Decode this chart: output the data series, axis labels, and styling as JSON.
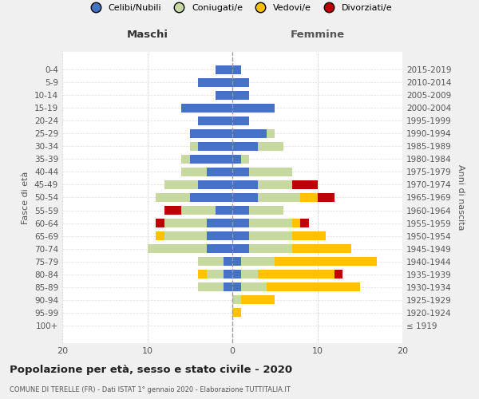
{
  "age_groups": [
    "0-4",
    "5-9",
    "10-14",
    "15-19",
    "20-24",
    "25-29",
    "30-34",
    "35-39",
    "40-44",
    "45-49",
    "50-54",
    "55-59",
    "60-64",
    "65-69",
    "70-74",
    "75-79",
    "80-84",
    "85-89",
    "90-94",
    "95-99",
    "100+"
  ],
  "birth_years": [
    "2015-2019",
    "2010-2014",
    "2005-2009",
    "2000-2004",
    "1995-1999",
    "1990-1994",
    "1985-1989",
    "1980-1984",
    "1975-1979",
    "1970-1974",
    "1965-1969",
    "1960-1964",
    "1955-1959",
    "1950-1954",
    "1945-1949",
    "1940-1944",
    "1935-1939",
    "1930-1934",
    "1925-1929",
    "1920-1924",
    "≤ 1919"
  ],
  "colors": {
    "celibe": "#4472c4",
    "coniugato": "#c5d9a0",
    "vedovo": "#ffc000",
    "divorziato": "#c00000"
  },
  "males": {
    "celibe": [
      2,
      4,
      2,
      6,
      4,
      5,
      4,
      5,
      3,
      4,
      5,
      2,
      3,
      3,
      3,
      1,
      1,
      1,
      0,
      0,
      0
    ],
    "coniugato": [
      0,
      0,
      0,
      0,
      0,
      0,
      1,
      1,
      3,
      4,
      4,
      4,
      5,
      5,
      7,
      3,
      2,
      3,
      0,
      0,
      0
    ],
    "vedovo": [
      0,
      0,
      0,
      0,
      0,
      0,
      0,
      0,
      0,
      0,
      0,
      0,
      0,
      1,
      0,
      0,
      1,
      0,
      0,
      0,
      0
    ],
    "divorziato": [
      0,
      0,
      0,
      0,
      0,
      0,
      0,
      0,
      0,
      0,
      0,
      2,
      1,
      0,
      0,
      0,
      0,
      0,
      0,
      0,
      0
    ]
  },
  "females": {
    "nubile": [
      1,
      2,
      2,
      5,
      2,
      4,
      3,
      1,
      2,
      3,
      3,
      2,
      2,
      2,
      2,
      1,
      1,
      1,
      0,
      0,
      0
    ],
    "coniugata": [
      0,
      0,
      0,
      0,
      0,
      1,
      3,
      1,
      5,
      4,
      5,
      4,
      5,
      5,
      5,
      4,
      2,
      3,
      1,
      0,
      0
    ],
    "vedova": [
      0,
      0,
      0,
      0,
      0,
      0,
      0,
      0,
      0,
      0,
      2,
      0,
      1,
      4,
      7,
      12,
      9,
      11,
      4,
      1,
      0
    ],
    "divorziata": [
      0,
      0,
      0,
      0,
      0,
      0,
      0,
      0,
      0,
      3,
      2,
      0,
      1,
      0,
      0,
      0,
      1,
      0,
      0,
      0,
      0
    ]
  },
  "title": "Popolazione per età, sesso e stato civile - 2020",
  "subtitle": "COMUNE DI TERELLE (FR) - Dati ISTAT 1° gennaio 2020 - Elaborazione TUTTITALIA.IT",
  "ylabel_left": "Fasce di età",
  "ylabel_right": "Anni di nascita",
  "xlabel_left": "Maschi",
  "xlabel_right": "Femmine",
  "xlim": [
    -20,
    20
  ],
  "xticks": [
    -20,
    -10,
    0,
    10,
    20
  ],
  "xticklabels": [
    "20",
    "10",
    "0",
    "10",
    "20"
  ],
  "bg_color": "#f0f0f0",
  "plot_bg": "#ffffff",
  "legend_labels": [
    "Celibi/Nubili",
    "Coniugati/e",
    "Vedovi/e",
    "Divorziati/e"
  ]
}
